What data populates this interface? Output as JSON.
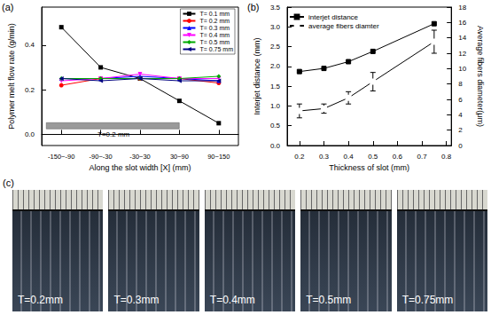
{
  "chart_data": [
    {
      "panel_label": "(a)",
      "type": "line",
      "x_label": "Along the slot width [X] (mm)",
      "y_label": "Polymer melt flow rate (g/min)",
      "categories": [
        "-150~-90",
        "-90~-30",
        "-30~30",
        "30~90",
        "90~150"
      ],
      "series": [
        {
          "name": "T= 0.1 mm",
          "color": "#000000",
          "marker": "square",
          "values": [
            0.48,
            0.3,
            0.25,
            0.15,
            0.05
          ]
        },
        {
          "name": "T= 0.2 mm",
          "color": "#ff0000",
          "marker": "circle",
          "values": [
            0.22,
            0.25,
            0.25,
            0.25,
            0.23
          ]
        },
        {
          "name": "T= 0.3 mm",
          "color": "#0000ff",
          "marker": "triangle",
          "values": [
            0.25,
            0.25,
            0.26,
            0.25,
            0.24
          ]
        },
        {
          "name": "T= 0.4 mm",
          "color": "#ff00ff",
          "marker": "triangle_down",
          "values": [
            0.24,
            0.25,
            0.27,
            0.25,
            0.25
          ]
        },
        {
          "name": "T= 0.5 mm",
          "color": "#00aa00",
          "marker": "diamond",
          "values": [
            0.25,
            0.25,
            0.25,
            0.25,
            0.26
          ]
        },
        {
          "name": "T= 0.75 mm",
          "color": "#000080",
          "marker": "triangle_left",
          "values": [
            0.25,
            0.24,
            0.25,
            0.24,
            0.24
          ]
        }
      ],
      "ylim": [
        -0.05,
        0.57
      ],
      "yticks": [
        {
          "value": 0,
          "label": "0.0"
        },
        {
          "value": 0.2,
          "label": "0.2"
        },
        {
          "value": 0.4,
          "label": "0.4"
        }
      ],
      "legend": "upper right",
      "annotations": [
        "T=0.2 mm"
      ],
      "grid": false
    },
    {
      "panel_label": "(b)",
      "type": "line",
      "x_label": "Thickness of slot (mm)",
      "y_label": "Interjet distance (mm)",
      "y2_label": "Average fibers diameter(μm)",
      "x": [
        0.2,
        0.3,
        0.4,
        0.5,
        0.75
      ],
      "xlim": [
        0.15,
        0.82
      ],
      "xticks": [
        0.2,
        0.3,
        0.4,
        0.5,
        0.6,
        0.7,
        0.8
      ],
      "ylim": [
        0,
        3.5
      ],
      "yticks": [
        {
          "value": 0,
          "label": "0.0"
        },
        0.5,
        {
          "value": 1,
          "label": "1.0"
        },
        1.5,
        {
          "value": 2,
          "label": "2.0"
        },
        2.5,
        {
          "value": 3,
          "label": "3.0"
        },
        3.5
      ],
      "y2lim": [
        0,
        18
      ],
      "y2ticks": [
        0,
        2,
        4,
        6,
        8,
        10,
        12,
        14,
        16,
        18
      ],
      "series": [
        {
          "name": "interjet distance",
          "color": "#000000",
          "marker": "square",
          "values": [
            1.87,
            1.95,
            2.12,
            2.38,
            3.08
          ]
        },
        {
          "name": "average fibers diamter",
          "color": "#000000",
          "marker": "hollow_square",
          "axis": "y2",
          "values": [
            4.5,
            4.8,
            6.2,
            8.3,
            13.5
          ],
          "errors": [
            0.9,
            0.6,
            0.8,
            1.2,
            1.5
          ]
        }
      ],
      "legend": "upper left",
      "grid": false
    }
  ],
  "photos": {
    "panel_label": "(c)",
    "captions": [
      "T=0.2mm",
      "T=0.3mm",
      "T=0.4mm",
      "T=0.5mm",
      "T=0.75mm"
    ]
  }
}
